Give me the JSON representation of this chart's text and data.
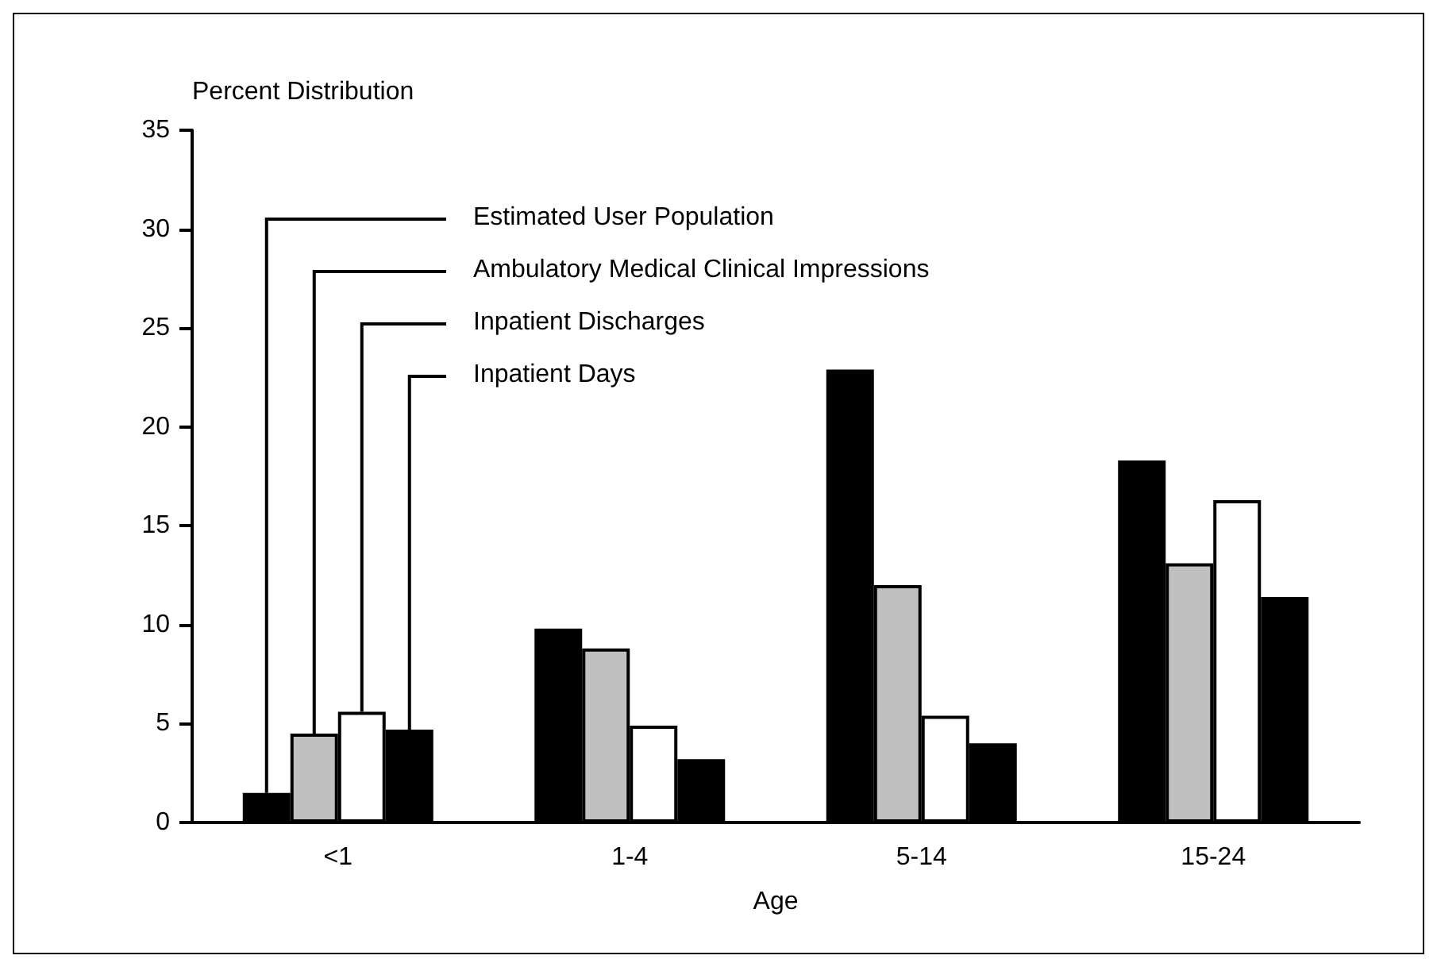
{
  "chart_data": {
    "type": "bar",
    "xlabel": "Age",
    "ylabel": "Percent Distribution",
    "categories": [
      "<1",
      "1-4",
      "5-14",
      "15-24"
    ],
    "series": [
      {
        "name": "Estimated User Population",
        "color": "#000000",
        "values": [
          1.5,
          9.8,
          22.9,
          18.3
        ]
      },
      {
        "name": "Ambulatory Medical Clinical Impressions",
        "color": "#c0c0c0",
        "values": [
          4.5,
          8.8,
          12.0,
          13.1
        ]
      },
      {
        "name": "Inpatient Discharges",
        "color": "#ffffff",
        "values": [
          5.6,
          4.9,
          5.4,
          16.3
        ]
      },
      {
        "name": "Inpatient Days",
        "color": "#000000",
        "values": [
          4.7,
          3.2,
          4.0,
          11.4
        ]
      }
    ],
    "ylim": [
      0,
      35
    ],
    "yticks": [
      0,
      5,
      10,
      15,
      20,
      25,
      30,
      35
    ],
    "grid": false,
    "legend": "top left"
  }
}
